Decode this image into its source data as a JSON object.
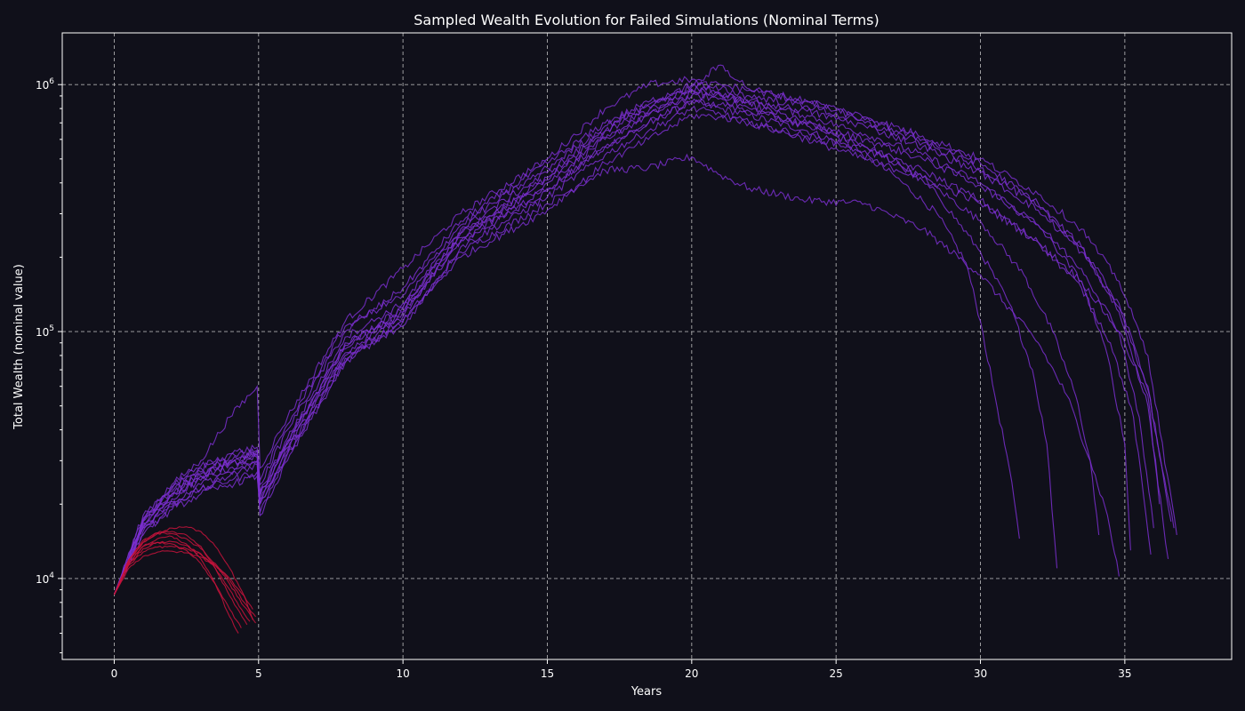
{
  "chart_data": {
    "type": "line",
    "title": "Sampled Wealth Evolution for Failed Simulations (Nominal Terms)",
    "xlabel": "Years",
    "ylabel": "Total Wealth (nominal value)",
    "xlim": [
      -1.8,
      38.7
    ],
    "ylim": [
      4700,
      1620000
    ],
    "yscale": "log",
    "grid": true,
    "x_ticks": [
      {
        "value": 0,
        "label": "0"
      },
      {
        "value": 5,
        "label": "5"
      },
      {
        "value": 10,
        "label": "10"
      },
      {
        "value": 15,
        "label": "15"
      },
      {
        "value": 20,
        "label": "20"
      },
      {
        "value": 25,
        "label": "25"
      },
      {
        "value": 30,
        "label": "30"
      },
      {
        "value": 35,
        "label": "35"
      }
    ],
    "y_ticks": [
      {
        "value": 10000,
        "base": "10",
        "exp": "4"
      },
      {
        "value": 100000,
        "base": "10",
        "exp": "5"
      },
      {
        "value": 1000000,
        "base": "10",
        "exp": "6"
      }
    ],
    "colors": {
      "long_run": "#7b2fd0",
      "early_fail": "#c8133c"
    },
    "series": [
      {
        "group": "long_run",
        "x": [
          0,
          1,
          2,
          3,
          4,
          4.95,
          5.05,
          6,
          8,
          10,
          12,
          15,
          17,
          18.5,
          20,
          21,
          22,
          24,
          25.5,
          27,
          28.5,
          29.5,
          30,
          30.5,
          31,
          31.35
        ],
        "y": [
          8600,
          15000,
          19500,
          23000,
          26000,
          29000,
          20000,
          32000,
          75000,
          120000,
          230000,
          370000,
          560000,
          700000,
          850000,
          800000,
          750000,
          650000,
          560000,
          430000,
          300000,
          190000,
          110000,
          55000,
          28000,
          14500
        ]
      },
      {
        "group": "long_run",
        "x": [
          0,
          1,
          2,
          3,
          4,
          4.95,
          5.05,
          6,
          8,
          10,
          12,
          15,
          17,
          18.5,
          20,
          21,
          22,
          24,
          25.5,
          27,
          28.5,
          30,
          31,
          31.8,
          32.3,
          32.65
        ],
        "y": [
          8600,
          16000,
          21000,
          26000,
          30000,
          33000,
          22000,
          36000,
          85000,
          125000,
          250000,
          420000,
          650000,
          780000,
          950000,
          920000,
          830000,
          700000,
          600000,
          500000,
          360000,
          210000,
          130000,
          70000,
          35000,
          11000
        ]
      },
      {
        "group": "long_run",
        "x": [
          0,
          1,
          2,
          3,
          4,
          4.95,
          5.05,
          6,
          8,
          10,
          12,
          15,
          17,
          18.5,
          20,
          21,
          22,
          24,
          26,
          28,
          30,
          31.5,
          32.5,
          33.3,
          33.8,
          34.1
        ],
        "y": [
          8600,
          17000,
          22000,
          26000,
          29000,
          31000,
          21000,
          35000,
          90000,
          115000,
          240000,
          400000,
          600000,
          750000,
          900000,
          880000,
          800000,
          680000,
          560000,
          420000,
          280000,
          170000,
          100000,
          55000,
          30000,
          15000
        ]
      },
      {
        "group": "long_run",
        "x": [
          0,
          1,
          2,
          3,
          4,
          4.95,
          5.05,
          6,
          8,
          10,
          12,
          15,
          17,
          18.5,
          20,
          21,
          22,
          24,
          26,
          28,
          30,
          32,
          33,
          33.8,
          34.4,
          34.8
        ],
        "y": [
          8600,
          16500,
          21500,
          25000,
          28000,
          30000,
          20500,
          34000,
          80000,
          110000,
          210000,
          330000,
          450000,
          460000,
          510000,
          430000,
          380000,
          340000,
          330000,
          260000,
          170000,
          90000,
          55000,
          30000,
          18000,
          10200
        ]
      },
      {
        "group": "long_run",
        "x": [
          0,
          1,
          2,
          3,
          4,
          4.95,
          5.05,
          6,
          8,
          10,
          12,
          15,
          17,
          18.5,
          20,
          21,
          22,
          24,
          26,
          28,
          30,
          32,
          33.5,
          34.4,
          35,
          35.2
        ],
        "y": [
          8600,
          18000,
          24000,
          30000,
          45000,
          60000,
          28000,
          45000,
          110000,
          180000,
          300000,
          500000,
          800000,
          1000000,
          1050000,
          900000,
          850000,
          750000,
          630000,
          520000,
          400000,
          270000,
          160000,
          80000,
          35000,
          13000
        ]
      },
      {
        "group": "long_run",
        "x": [
          0,
          1,
          2,
          3,
          4,
          4.95,
          5.05,
          6,
          8,
          10,
          12,
          15,
          17,
          18.5,
          20,
          21,
          22,
          24,
          26,
          28,
          30,
          32,
          33.5,
          34.5,
          35.3,
          35.9
        ],
        "y": [
          8600,
          16000,
          20000,
          23000,
          25000,
          27000,
          18500,
          32000,
          78000,
          105000,
          220000,
          350000,
          520000,
          650000,
          800000,
          760000,
          700000,
          620000,
          540000,
          450000,
          340000,
          230000,
          150000,
          90000,
          45000,
          12500
        ]
      },
      {
        "group": "long_run",
        "x": [
          0,
          1,
          2,
          3,
          4,
          4.95,
          5.05,
          6,
          8,
          10,
          12,
          15,
          17,
          18.5,
          20,
          21,
          22,
          24,
          26,
          28,
          30,
          32,
          33.5,
          34.8,
          35.8,
          36.5
        ],
        "y": [
          8600,
          17000,
          23000,
          28000,
          31000,
          33000,
          24000,
          40000,
          100000,
          150000,
          280000,
          480000,
          700000,
          850000,
          1000000,
          1000000,
          950000,
          850000,
          720000,
          600000,
          480000,
          330000,
          220000,
          120000,
          50000,
          12000
        ]
      },
      {
        "group": "long_run",
        "x": [
          0,
          1,
          2,
          3,
          4,
          4.95,
          5.05,
          6,
          8,
          10,
          12,
          15,
          17,
          18.5,
          20,
          21,
          22,
          24,
          26,
          28,
          30,
          32,
          33.5,
          34.8,
          35.8,
          36.2
        ],
        "y": [
          8600,
          15500,
          19000,
          22000,
          24000,
          26000,
          18000,
          30000,
          75000,
          110000,
          200000,
          310000,
          480000,
          600000,
          750000,
          740000,
          700000,
          600000,
          500000,
          420000,
          330000,
          230000,
          160000,
          100000,
          55000,
          20000
        ]
      },
      {
        "group": "long_run",
        "x": [
          0,
          1,
          2,
          3,
          4,
          4.95,
          5.05,
          6,
          8,
          10,
          12,
          15,
          17,
          18.5,
          20,
          21,
          22,
          24,
          26,
          28,
          30,
          32,
          33.5,
          34.8,
          35.8,
          36.6
        ],
        "y": [
          8600,
          16800,
          22500,
          27000,
          30000,
          32000,
          22500,
          37000,
          95000,
          130000,
          260000,
          440000,
          650000,
          820000,
          960000,
          960000,
          900000,
          820000,
          700000,
          580000,
          460000,
          320000,
          220000,
          130000,
          60000,
          17000
        ]
      },
      {
        "group": "long_run",
        "x": [
          0,
          1,
          2,
          3,
          4,
          4.95,
          5.05,
          6,
          8,
          10,
          12,
          15,
          17,
          18.5,
          20,
          21,
          22,
          24,
          26,
          28,
          30,
          32,
          33.5,
          34.8,
          35.8,
          36.8
        ],
        "y": [
          8600,
          17500,
          23500,
          28500,
          32000,
          34000,
          25000,
          42000,
          105000,
          140000,
          270000,
          460000,
          680000,
          830000,
          980000,
          1200000,
          960000,
          860000,
          740000,
          620000,
          500000,
          360000,
          260000,
          160000,
          80000,
          15000
        ]
      },
      {
        "group": "long_run",
        "x": [
          0,
          1,
          2,
          3,
          4,
          4.95,
          5.05,
          6,
          8,
          10,
          12,
          15,
          17,
          18.5,
          20,
          21,
          22,
          24,
          26,
          28,
          30,
          32,
          33.5,
          34.8,
          35.5,
          36
        ],
        "y": [
          8600,
          16200,
          20500,
          24000,
          27000,
          29500,
          20000,
          33000,
          82000,
          120000,
          235000,
          380000,
          560000,
          700000,
          860000,
          830000,
          780000,
          690000,
          600000,
          500000,
          390000,
          270000,
          180000,
          100000,
          45000,
          16000
        ]
      },
      {
        "group": "long_run",
        "x": [
          0,
          1,
          2,
          3,
          4,
          4.95,
          5.05,
          6,
          8,
          10,
          12,
          15,
          17,
          18.5,
          20,
          21,
          22,
          24,
          26,
          28,
          30,
          32,
          33.5,
          34.8,
          35.8,
          36.7
        ],
        "y": [
          8600,
          17200,
          22000,
          26500,
          29500,
          31500,
          21500,
          36000,
          88000,
          125000,
          250000,
          410000,
          610000,
          760000,
          920000,
          900000,
          860000,
          780000,
          680000,
          560000,
          440000,
          310000,
          210000,
          125000,
          58000,
          16000
        ]
      },
      {
        "group": "early_fail",
        "x": [
          0,
          0.5,
          1,
          1.5,
          2,
          2.5,
          3,
          3.5,
          4,
          4.3
        ],
        "y": [
          8600,
          11500,
          13500,
          14500,
          14800,
          13800,
          12000,
          9500,
          7000,
          6000
        ]
      },
      {
        "group": "early_fail",
        "x": [
          0,
          0.5,
          1,
          1.5,
          2,
          2.5,
          3,
          3.5,
          4,
          4.6
        ],
        "y": [
          8600,
          11800,
          14000,
          15200,
          15500,
          15000,
          13500,
          11000,
          8500,
          6500
        ]
      },
      {
        "group": "early_fail",
        "x": [
          0,
          0.5,
          1,
          1.5,
          2,
          2.5,
          3,
          3.5,
          4,
          4.5,
          4.8
        ],
        "y": [
          8600,
          11700,
          14000,
          15300,
          16000,
          16200,
          15500,
          13500,
          11000,
          8500,
          6800
        ]
      },
      {
        "group": "early_fail",
        "x": [
          0,
          0.5,
          1,
          1.5,
          2,
          2.5,
          3,
          3.5,
          4,
          4.5,
          4.9
        ],
        "y": [
          8600,
          11300,
          12800,
          13400,
          13500,
          13200,
          12500,
          11300,
          9800,
          8000,
          7000
        ]
      },
      {
        "group": "early_fail",
        "x": [
          0,
          0.5,
          1,
          1.5,
          2,
          2.5,
          3,
          3.5,
          4,
          4.5,
          4.8
        ],
        "y": [
          8600,
          11000,
          12300,
          12800,
          12900,
          12700,
          12200,
          11300,
          10000,
          8500,
          7500
        ]
      },
      {
        "group": "early_fail",
        "x": [
          0,
          0.5,
          1,
          1.5,
          2,
          2.5,
          3,
          3.5,
          4,
          4.4
        ],
        "y": [
          8600,
          11600,
          13500,
          14000,
          13800,
          13000,
          11500,
          9500,
          7500,
          6300
        ]
      },
      {
        "group": "early_fail",
        "x": [
          0,
          0.5,
          1,
          1.5,
          2,
          2.5,
          3,
          3.5,
          4,
          4.5,
          4.9
        ],
        "y": [
          8600,
          11900,
          14300,
          15300,
          15200,
          14500,
          13200,
          11500,
          9500,
          7700,
          6600
        ]
      },
      {
        "group": "early_fail",
        "x": [
          0,
          0.5,
          1,
          1.5,
          2,
          2.5,
          3,
          3.5,
          4,
          4.5,
          4.7
        ],
        "y": [
          8600,
          11400,
          13200,
          14000,
          14100,
          13600,
          12600,
          11000,
          9000,
          7200,
          6700
        ]
      }
    ]
  }
}
